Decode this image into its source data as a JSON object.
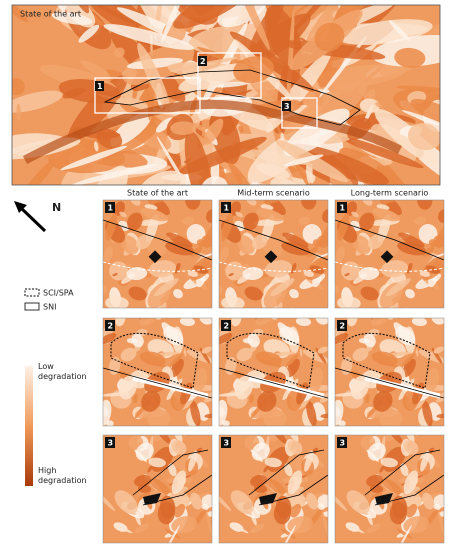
{
  "overview": {
    "title": "State of the art",
    "boxes": [
      "1",
      "2",
      "3"
    ]
  },
  "north": "N",
  "legend": {
    "lines": [
      "SCI/SPA",
      "SNI"
    ],
    "low": "Low degradation",
    "high": "High degradation"
  },
  "columns": [
    "State of the art",
    "Mid-term scenario",
    "Long-term scenario"
  ],
  "rows": [
    "1",
    "2",
    "3"
  ]
}
